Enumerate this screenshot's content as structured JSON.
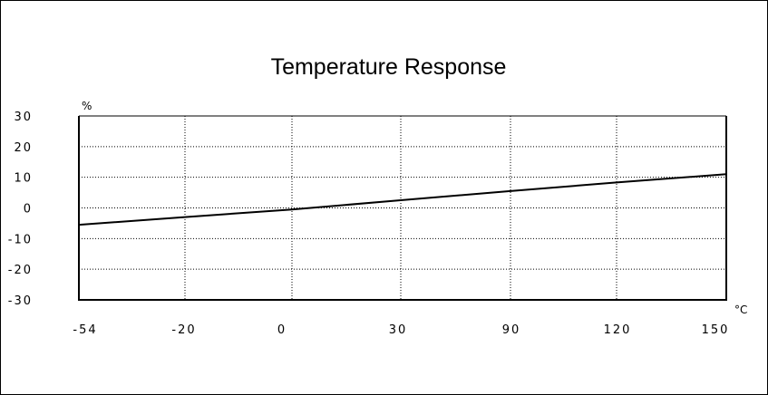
{
  "chart_data": {
    "type": "line",
    "title": "Temperature Response",
    "y_unit": "%",
    "x_unit": "°C",
    "x_tick_labels": [
      "-54",
      "-20",
      "0",
      "30",
      "90",
      "120",
      "150"
    ],
    "y_tick_labels": [
      "30",
      "20",
      "10",
      "0",
      "-10",
      "-20",
      "-30"
    ],
    "ylim": [
      -30,
      30
    ],
    "grid": true,
    "series": [
      {
        "x": [
          "-54",
          "-20",
          "0",
          "30",
          "90",
          "120",
          "150"
        ],
        "y": [
          -5.5,
          -3,
          -0.5,
          2.5,
          5.5,
          8.3,
          11
        ]
      }
    ]
  }
}
